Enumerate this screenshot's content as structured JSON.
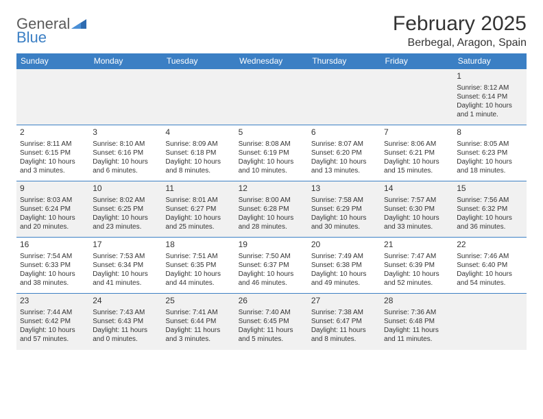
{
  "logo": {
    "text_general": "General",
    "text_blue": "Blue"
  },
  "title": {
    "month": "February 2025",
    "location": "Berbegal, Aragon, Spain"
  },
  "colors": {
    "brand_blue": "#3b7fc4",
    "header_bg": "#3b7fc4",
    "header_fg": "#ffffff",
    "row_alt_bg": "#f1f1f1",
    "row_bg": "#ffffff",
    "text": "#333333",
    "border": "#3b7fc4"
  },
  "typography": {
    "title_size": 30,
    "location_size": 16,
    "dayheader_size": 12,
    "cell_size": 10
  },
  "daynames": [
    "Sunday",
    "Monday",
    "Tuesday",
    "Wednesday",
    "Thursday",
    "Friday",
    "Saturday"
  ],
  "weeks": [
    [
      {
        "day": "",
        "sunrise": "",
        "sunset": "",
        "daylight": ""
      },
      {
        "day": "",
        "sunrise": "",
        "sunset": "",
        "daylight": ""
      },
      {
        "day": "",
        "sunrise": "",
        "sunset": "",
        "daylight": ""
      },
      {
        "day": "",
        "sunrise": "",
        "sunset": "",
        "daylight": ""
      },
      {
        "day": "",
        "sunrise": "",
        "sunset": "",
        "daylight": ""
      },
      {
        "day": "",
        "sunrise": "",
        "sunset": "",
        "daylight": ""
      },
      {
        "day": "1",
        "sunrise": "Sunrise: 8:12 AM",
        "sunset": "Sunset: 6:14 PM",
        "daylight": "Daylight: 10 hours and 1 minute."
      }
    ],
    [
      {
        "day": "2",
        "sunrise": "Sunrise: 8:11 AM",
        "sunset": "Sunset: 6:15 PM",
        "daylight": "Daylight: 10 hours and 3 minutes."
      },
      {
        "day": "3",
        "sunrise": "Sunrise: 8:10 AM",
        "sunset": "Sunset: 6:16 PM",
        "daylight": "Daylight: 10 hours and 6 minutes."
      },
      {
        "day": "4",
        "sunrise": "Sunrise: 8:09 AM",
        "sunset": "Sunset: 6:18 PM",
        "daylight": "Daylight: 10 hours and 8 minutes."
      },
      {
        "day": "5",
        "sunrise": "Sunrise: 8:08 AM",
        "sunset": "Sunset: 6:19 PM",
        "daylight": "Daylight: 10 hours and 10 minutes."
      },
      {
        "day": "6",
        "sunrise": "Sunrise: 8:07 AM",
        "sunset": "Sunset: 6:20 PM",
        "daylight": "Daylight: 10 hours and 13 minutes."
      },
      {
        "day": "7",
        "sunrise": "Sunrise: 8:06 AM",
        "sunset": "Sunset: 6:21 PM",
        "daylight": "Daylight: 10 hours and 15 minutes."
      },
      {
        "day": "8",
        "sunrise": "Sunrise: 8:05 AM",
        "sunset": "Sunset: 6:23 PM",
        "daylight": "Daylight: 10 hours and 18 minutes."
      }
    ],
    [
      {
        "day": "9",
        "sunrise": "Sunrise: 8:03 AM",
        "sunset": "Sunset: 6:24 PM",
        "daylight": "Daylight: 10 hours and 20 minutes."
      },
      {
        "day": "10",
        "sunrise": "Sunrise: 8:02 AM",
        "sunset": "Sunset: 6:25 PM",
        "daylight": "Daylight: 10 hours and 23 minutes."
      },
      {
        "day": "11",
        "sunrise": "Sunrise: 8:01 AM",
        "sunset": "Sunset: 6:27 PM",
        "daylight": "Daylight: 10 hours and 25 minutes."
      },
      {
        "day": "12",
        "sunrise": "Sunrise: 8:00 AM",
        "sunset": "Sunset: 6:28 PM",
        "daylight": "Daylight: 10 hours and 28 minutes."
      },
      {
        "day": "13",
        "sunrise": "Sunrise: 7:58 AM",
        "sunset": "Sunset: 6:29 PM",
        "daylight": "Daylight: 10 hours and 30 minutes."
      },
      {
        "day": "14",
        "sunrise": "Sunrise: 7:57 AM",
        "sunset": "Sunset: 6:30 PM",
        "daylight": "Daylight: 10 hours and 33 minutes."
      },
      {
        "day": "15",
        "sunrise": "Sunrise: 7:56 AM",
        "sunset": "Sunset: 6:32 PM",
        "daylight": "Daylight: 10 hours and 36 minutes."
      }
    ],
    [
      {
        "day": "16",
        "sunrise": "Sunrise: 7:54 AM",
        "sunset": "Sunset: 6:33 PM",
        "daylight": "Daylight: 10 hours and 38 minutes."
      },
      {
        "day": "17",
        "sunrise": "Sunrise: 7:53 AM",
        "sunset": "Sunset: 6:34 PM",
        "daylight": "Daylight: 10 hours and 41 minutes."
      },
      {
        "day": "18",
        "sunrise": "Sunrise: 7:51 AM",
        "sunset": "Sunset: 6:35 PM",
        "daylight": "Daylight: 10 hours and 44 minutes."
      },
      {
        "day": "19",
        "sunrise": "Sunrise: 7:50 AM",
        "sunset": "Sunset: 6:37 PM",
        "daylight": "Daylight: 10 hours and 46 minutes."
      },
      {
        "day": "20",
        "sunrise": "Sunrise: 7:49 AM",
        "sunset": "Sunset: 6:38 PM",
        "daylight": "Daylight: 10 hours and 49 minutes."
      },
      {
        "day": "21",
        "sunrise": "Sunrise: 7:47 AM",
        "sunset": "Sunset: 6:39 PM",
        "daylight": "Daylight: 10 hours and 52 minutes."
      },
      {
        "day": "22",
        "sunrise": "Sunrise: 7:46 AM",
        "sunset": "Sunset: 6:40 PM",
        "daylight": "Daylight: 10 hours and 54 minutes."
      }
    ],
    [
      {
        "day": "23",
        "sunrise": "Sunrise: 7:44 AM",
        "sunset": "Sunset: 6:42 PM",
        "daylight": "Daylight: 10 hours and 57 minutes."
      },
      {
        "day": "24",
        "sunrise": "Sunrise: 7:43 AM",
        "sunset": "Sunset: 6:43 PM",
        "daylight": "Daylight: 11 hours and 0 minutes."
      },
      {
        "day": "25",
        "sunrise": "Sunrise: 7:41 AM",
        "sunset": "Sunset: 6:44 PM",
        "daylight": "Daylight: 11 hours and 3 minutes."
      },
      {
        "day": "26",
        "sunrise": "Sunrise: 7:40 AM",
        "sunset": "Sunset: 6:45 PM",
        "daylight": "Daylight: 11 hours and 5 minutes."
      },
      {
        "day": "27",
        "sunrise": "Sunrise: 7:38 AM",
        "sunset": "Sunset: 6:47 PM",
        "daylight": "Daylight: 11 hours and 8 minutes."
      },
      {
        "day": "28",
        "sunrise": "Sunrise: 7:36 AM",
        "sunset": "Sunset: 6:48 PM",
        "daylight": "Daylight: 11 hours and 11 minutes."
      },
      {
        "day": "",
        "sunrise": "",
        "sunset": "",
        "daylight": ""
      }
    ]
  ]
}
